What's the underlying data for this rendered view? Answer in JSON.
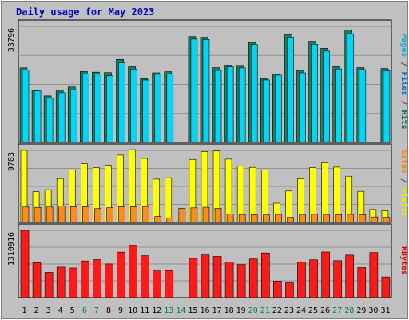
{
  "chart_data": {
    "type": "bar",
    "title": "Daily usage for May 2023",
    "categories": [
      "1",
      "2",
      "3",
      "4",
      "5",
      "6",
      "7",
      "8",
      "9",
      "10",
      "11",
      "12",
      "13",
      "14",
      "15",
      "16",
      "17",
      "18",
      "19",
      "20",
      "21",
      "22",
      "23",
      "24",
      "25",
      "26",
      "27",
      "28",
      "29",
      "30",
      "31"
    ],
    "weekend_days": [
      6,
      7,
      13,
      14,
      20,
      21,
      27,
      28
    ],
    "panels": [
      {
        "name": "pages-files-hits",
        "max_label": "33796",
        "max_value": 33796,
        "ylabel_parts": [
          {
            "text": "Pages",
            "color": "#00b0d8"
          },
          {
            "text": " / ",
            "color": "#444444"
          },
          {
            "text": "Files",
            "color": "#0070d0"
          },
          {
            "text": " / ",
            "color": "#444444"
          },
          {
            "text": "Hits",
            "color": "#006c4c"
          }
        ],
        "series": [
          {
            "name": "Hits",
            "color": "#1b8060",
            "values": [
              21720,
              15200,
              13540,
              15180,
              16140,
              20650,
              20470,
              20340,
              24180,
              22030,
              18550,
              20270,
              20600,
              0,
              30830,
              30610,
              21770,
              22460,
              22430,
              29120,
              18620,
              19980,
              31450,
              20960,
              29470,
              27410,
              22100,
              32800,
              21780,
              0,
              21540
            ]
          },
          {
            "name": "Files",
            "color": "#00d6f8",
            "values": [
              21120,
              15000,
              12860,
              14480,
              15350,
              19970,
              19990,
              19440,
              23160,
              21370,
              18180,
              19850,
              20000,
              0,
              30100,
              29990,
              20970,
              22030,
              21700,
              28540,
              18200,
              19610,
              30660,
              20270,
              28580,
              26620,
              21420,
              31680,
              21220,
              0,
              20880
            ]
          },
          {
            "name": "Pages",
            "color": "#00d6f8",
            "values": [
              0,
              0,
              0,
              0,
              0,
              0,
              0,
              0,
              0,
              0,
              0,
              0,
              0,
              0,
              0,
              0,
              0,
              0,
              0,
              0,
              0,
              0,
              0,
              0,
              0,
              0,
              0,
              0,
              0,
              0,
              0
            ]
          }
        ]
      },
      {
        "name": "visits-sites",
        "max_label": "9783",
        "max_value": 9783,
        "ylabel_parts": [
          {
            "text": "Sites",
            "color": "#ff8000"
          },
          {
            "text": " / ",
            "color": "#444444"
          },
          {
            "text": "Visits",
            "color": "#e8e800"
          }
        ],
        "series": [
          {
            "name": "Visits",
            "color": "#ffff00",
            "values": [
              9783,
              4170,
              4440,
              5960,
              7130,
              7980,
              7420,
              7760,
              9140,
              9880,
              8700,
              5880,
              6070,
              0,
              8560,
              9640,
              9700,
              8600,
              7660,
              7480,
              7140,
              2610,
              4260,
              5940,
              7440,
              8120,
              7510,
              6280,
              4220,
              1750,
              1570
            ]
          },
          {
            "name": "Sites",
            "color": "#ff8c1a",
            "values": [
              2090,
              2040,
              2090,
              2240,
              2140,
              2140,
              1870,
              1990,
              2140,
              2140,
              2160,
              810,
              620,
              1910,
              1980,
              2060,
              1910,
              1150,
              1080,
              1040,
              1020,
              1080,
              700,
              1080,
              1100,
              1080,
              1050,
              1090,
              1040,
              740,
              700
            ]
          }
        ]
      },
      {
        "name": "kbytes",
        "max_label": "1310916",
        "max_value": 1310916,
        "ylabel_parts": [
          {
            "text": "KBytes",
            "color": "#e80000"
          }
        ],
        "series": [
          {
            "name": "KBytes",
            "color": "#ff1a1a",
            "values": [
              1310916,
              680660,
              491730,
              593880,
              577470,
              715480,
              740700,
              657260,
              886960,
              1020000,
              816580,
              520150,
              527530,
              0,
              765600,
              831840,
              804100,
              695100,
              643740,
              754060,
              871120,
              322400,
              288260,
              695500,
              737320,
              889980,
              720530,
              828940,
              585340,
              879010,
              403970
            ]
          }
        ]
      }
    ]
  }
}
